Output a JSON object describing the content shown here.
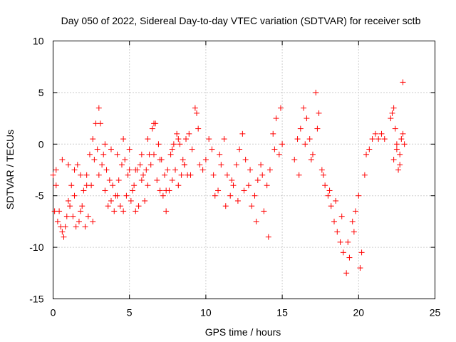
{
  "chart_data": {
    "type": "scatter",
    "title": "Day 050 of 2022, Sidereal Day-to-day VTEC variation (SDTVAR) for receiver sctb",
    "xlabel": "GPS time / hours",
    "ylabel": "SDTVAR / TECUs",
    "xlim": [
      0,
      25
    ],
    "ylim": [
      -15,
      10
    ],
    "xticks": [
      0,
      5,
      10,
      15,
      20,
      25
    ],
    "yticks": [
      -15,
      -10,
      -5,
      0,
      5,
      10
    ],
    "xtick_labels": [
      "0",
      "5",
      "10",
      "15",
      "20",
      "25"
    ],
    "ytick_labels": [
      "-15",
      "-10",
      "-5",
      "0",
      "5",
      "10"
    ],
    "grid": true,
    "marker": "+",
    "color": "#ff0000",
    "series": [
      {
        "name": "SDTVAR",
        "segments": [
          {
            "x": [
              0.0,
              0.2,
              0.4,
              0.6,
              0.8,
              1.0,
              1.2,
              1.4,
              1.6,
              1.8,
              2.0,
              2.2,
              2.4,
              2.6,
              2.8,
              3.0,
              3.1,
              3.3,
              3.5,
              3.7,
              3.9,
              4.1,
              4.3,
              4.5,
              4.7,
              4.9,
              5.1,
              5.3,
              5.5,
              5.7,
              5.9,
              6.1,
              6.3,
              6.5,
              6.7,
              6.9,
              7.1,
              7.3,
              7.5,
              7.7,
              7.9,
              8.1,
              8.3,
              8.5,
              8.7,
              8.9,
              9.1
            ],
            "y": [
              -3.0,
              -4.0,
              -6.5,
              -8.5,
              -8.0,
              -5.5,
              -4.0,
              -2.5,
              -2.0,
              -3.0,
              -4.5,
              -3.0,
              -1.0,
              0.5,
              2.0,
              3.5,
              2.0,
              -1.0,
              -2.5,
              -3.5,
              -4.0,
              -5.0,
              -3.5,
              -2.0,
              -1.5,
              -3.0,
              -5.5,
              -4.0,
              -2.5,
              -2.0,
              -3.0,
              -2.5,
              -1.0,
              1.5,
              2.0,
              0.0,
              -1.5,
              -3.0,
              -2.5,
              -1.0,
              0.0,
              1.0,
              0.0,
              -1.5,
              0.5,
              1.0,
              -0.5
            ]
          },
          {
            "x": [
              0.1,
              0.3,
              0.5,
              0.7,
              0.9,
              1.1,
              1.3,
              1.5,
              1.7,
              1.9,
              2.1,
              2.3,
              2.5,
              2.7,
              2.9,
              3.2,
              3.4,
              3.6,
              3.8,
              4.0,
              4.2,
              4.4,
              4.6,
              4.8,
              5.0,
              5.2,
              5.4,
              5.6,
              5.8,
              6.0,
              6.2,
              6.4,
              6.6,
              6.8,
              7.0,
              7.2,
              7.4,
              7.6,
              7.8,
              8.0,
              8.2,
              8.4,
              8.6,
              8.8
            ],
            "y": [
              -6.5,
              -7.5,
              -8.0,
              -9.0,
              -7.0,
              -6.0,
              -7.0,
              -8.0,
              -7.5,
              -6.0,
              -8.0,
              -7.0,
              -4.0,
              -1.5,
              -0.5,
              -2.0,
              -4.5,
              -6.0,
              -5.5,
              -6.5,
              -5.0,
              -6.0,
              -6.5,
              -5.0,
              -2.5,
              -4.5,
              -6.5,
              -6.0,
              -3.5,
              -5.5,
              -4.0,
              -2.0,
              -1.0,
              -3.5,
              -4.5,
              -5.0,
              -6.5,
              -4.5,
              -3.5,
              -2.5,
              -4.0,
              -3.0,
              -2.0,
              -3.0
            ]
          },
          {
            "x": [
              0.2,
              0.6,
              1.0,
              1.4,
              1.8,
              2.2,
              2.6,
              3.0,
              3.4,
              3.8,
              4.2,
              4.6,
              5.0,
              5.4,
              5.8,
              6.2,
              6.6,
              7.0,
              7.4,
              7.8,
              8.2,
              8.6,
              9.0
            ],
            "y": [
              -2.5,
              -1.5,
              -2.0,
              -5.0,
              -6.5,
              -4.0,
              -7.5,
              -3.0,
              0.0,
              -0.5,
              -1.0,
              0.5,
              -0.5,
              -2.5,
              -1.0,
              0.5,
              2.0,
              -1.5,
              -4.5,
              -0.5,
              0.5,
              -2.0,
              -3.0
            ]
          },
          {
            "x": [
              9.3,
              9.4,
              9.5
            ],
            "y": [
              3.5,
              3.0,
              1.5
            ]
          },
          {
            "x": [
              9.6,
              9.8,
              10.0,
              10.2,
              10.4,
              10.6,
              10.8,
              11.0,
              11.2,
              11.4,
              11.6,
              11.8,
              12.0,
              12.2,
              12.4,
              12.6,
              12.8,
              13.0,
              13.2,
              13.4,
              13.6,
              13.8,
              14.0,
              14.2,
              14.4,
              14.6,
              14.8,
              15.0
            ],
            "y": [
              -2.0,
              -2.5,
              -1.5,
              0.5,
              -0.5,
              -5.0,
              -4.5,
              -2.0,
              0.5,
              -3.0,
              -5.0,
              -4.0,
              -2.0,
              -0.5,
              1.0,
              -1.5,
              -4.0,
              -6.0,
              -5.0,
              -3.5,
              -2.0,
              -6.5,
              -4.0,
              -2.5,
              1.0,
              2.5,
              -1.0,
              0.0
            ]
          },
          {
            "x": [
              10.5,
              10.9,
              11.3,
              11.7,
              12.1,
              12.5,
              12.9,
              13.3,
              13.7,
              14.1,
              14.5,
              14.9
            ],
            "y": [
              -3.0,
              -1.0,
              -6.0,
              -3.5,
              -5.5,
              -4.5,
              -2.5,
              -7.5,
              -3.0,
              -9.0,
              -0.5,
              3.5
            ]
          },
          {
            "x": [
              15.8,
              16.0,
              16.2,
              16.4,
              16.6,
              16.8,
              17.0,
              17.2,
              17.4,
              17.6,
              17.8,
              18.0,
              18.2,
              18.4,
              18.6,
              18.8,
              19.0,
              19.2,
              19.4,
              19.6,
              19.8,
              20.0,
              20.2,
              20.4
            ],
            "y": [
              -1.5,
              0.5,
              1.5,
              3.5,
              2.5,
              0.5,
              -1.0,
              5.0,
              3.0,
              -2.5,
              -4.0,
              -5.0,
              -6.0,
              -7.5,
              -8.5,
              -9.5,
              -10.5,
              -12.5,
              -11.0,
              -7.5,
              -6.5,
              -5.0,
              -10.5,
              -3.0
            ]
          },
          {
            "x": [
              16.1,
              16.5,
              16.9,
              17.3,
              17.7,
              18.1,
              18.5,
              18.9,
              19.3,
              19.7,
              20.1
            ],
            "y": [
              -3.0,
              0.0,
              -1.5,
              1.5,
              -3.0,
              -4.5,
              -5.5,
              -7.0,
              -9.5,
              -8.5,
              -12.0
            ]
          },
          {
            "x": [
              20.5,
              20.7,
              20.9,
              21.1,
              21.3,
              21.5,
              21.7
            ],
            "y": [
              -1.0,
              -0.5,
              0.5,
              1.0,
              0.5,
              1.0,
              0.5
            ]
          },
          {
            "x": [
              22.1,
              22.2,
              22.3,
              22.4,
              22.5,
              22.6,
              22.7,
              22.8,
              22.9,
              23.0
            ],
            "y": [
              2.5,
              3.0,
              3.5,
              1.5,
              -0.5,
              -2.5,
              -1.0,
              0.5,
              6.0,
              0.0
            ]
          },
          {
            "x": [
              22.3,
              22.5,
              22.7,
              22.9
            ],
            "y": [
              -1.5,
              0.0,
              -2.0,
              1.0
            ]
          }
        ]
      }
    ]
  }
}
